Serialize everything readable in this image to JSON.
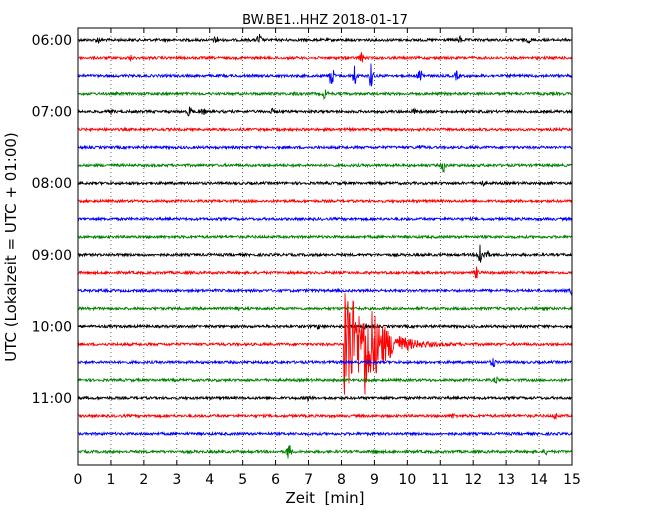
{
  "chart_data": {
    "type": "line",
    "title": "BW.BE1..HHZ 2018-01-17",
    "xlabel": "Zeit  [min]",
    "ylabel": "UTC (Lokalzeit = UTC + 01:00)",
    "xlim": [
      0,
      15
    ],
    "x_ticks": [
      "0",
      "1",
      "2",
      "3",
      "4",
      "5",
      "6",
      "7",
      "8",
      "9",
      "10",
      "11",
      "12",
      "13",
      "14",
      "15"
    ],
    "y_ticks": [
      "06:00",
      "07:00",
      "08:00",
      "09:00",
      "10:00",
      "11:00"
    ],
    "trace_interval_minutes": 15,
    "start_time": "06:00",
    "trace_colors": [
      "#000000",
      "#ff0000",
      "#0000ff",
      "#008000"
    ],
    "grid": "vertical dotted",
    "traces": [
      {
        "start": "06:00",
        "events": [
          {
            "t": 0.6,
            "a": 3
          },
          {
            "t": 4.2,
            "a": 4
          },
          {
            "t": 5.5,
            "a": 6
          },
          {
            "t": 11.6,
            "a": 3
          },
          {
            "t": 13.7,
            "a": 2
          }
        ]
      },
      {
        "start": "06:15",
        "events": [
          {
            "t": 1.6,
            "a": 2
          },
          {
            "t": 8.6,
            "a": 5
          }
        ]
      },
      {
        "start": "06:30",
        "events": [
          {
            "t": 7.7,
            "a": 12
          },
          {
            "t": 8.4,
            "a": 11
          },
          {
            "t": 8.9,
            "a": 12
          },
          {
            "t": 10.4,
            "a": 8
          },
          {
            "t": 11.5,
            "a": 4
          }
        ]
      },
      {
        "start": "06:45",
        "events": [
          {
            "t": 6.6,
            "a": 2
          },
          {
            "t": 7.5,
            "a": 5
          }
        ]
      },
      {
        "start": "07:00",
        "events": [
          {
            "t": 1.0,
            "a": 2
          },
          {
            "t": 3.4,
            "a": 6
          },
          {
            "t": 3.8,
            "a": 3
          },
          {
            "t": 5.9,
            "a": 2
          },
          {
            "t": 10.2,
            "a": 2
          }
        ]
      },
      {
        "start": "07:15",
        "events": []
      },
      {
        "start": "07:30",
        "events": [
          {
            "t": 10.4,
            "a": 2
          }
        ]
      },
      {
        "start": "07:45",
        "events": [
          {
            "t": 11.1,
            "a": 6
          }
        ]
      },
      {
        "start": "08:00",
        "events": [
          {
            "t": 12.3,
            "a": 2
          }
        ]
      },
      {
        "start": "08:15",
        "events": []
      },
      {
        "start": "08:30",
        "events": []
      },
      {
        "start": "08:45",
        "events": []
      },
      {
        "start": "09:00",
        "events": [
          {
            "t": 12.2,
            "a": 14
          },
          {
            "t": 12.4,
            "a": 6
          }
        ]
      },
      {
        "start": "09:15",
        "events": [
          {
            "t": 12.1,
            "a": 5
          }
        ]
      },
      {
        "start": "09:30",
        "events": [
          {
            "t": 15.0,
            "a": 3
          }
        ]
      },
      {
        "start": "09:45",
        "events": [
          {
            "t": 4.8,
            "a": 3
          }
        ]
      },
      {
        "start": "10:00",
        "events": [
          {
            "t": 7.3,
            "a": 2
          },
          {
            "t": 8.7,
            "a": 2
          }
        ]
      },
      {
        "start": "10:15",
        "events": [
          {
            "t": 8.1,
            "a": 72
          },
          {
            "t": 8.7,
            "a": 30
          }
        ]
      },
      {
        "start": "10:30",
        "events": [
          {
            "t": 12.6,
            "a": 5
          }
        ]
      },
      {
        "start": "10:45",
        "events": [
          {
            "t": 12.7,
            "a": 3
          }
        ]
      },
      {
        "start": "11:00",
        "events": [
          {
            "t": 7.0,
            "a": 2
          }
        ]
      },
      {
        "start": "11:15",
        "events": [
          {
            "t": 11.4,
            "a": 2
          },
          {
            "t": 14.5,
            "a": 3
          }
        ]
      },
      {
        "start": "11:30",
        "events": []
      },
      {
        "start": "11:45",
        "events": [
          {
            "t": 6.4,
            "a": 9
          },
          {
            "t": 9.0,
            "a": 2
          },
          {
            "t": 14.2,
            "a": 2
          }
        ]
      }
    ]
  }
}
